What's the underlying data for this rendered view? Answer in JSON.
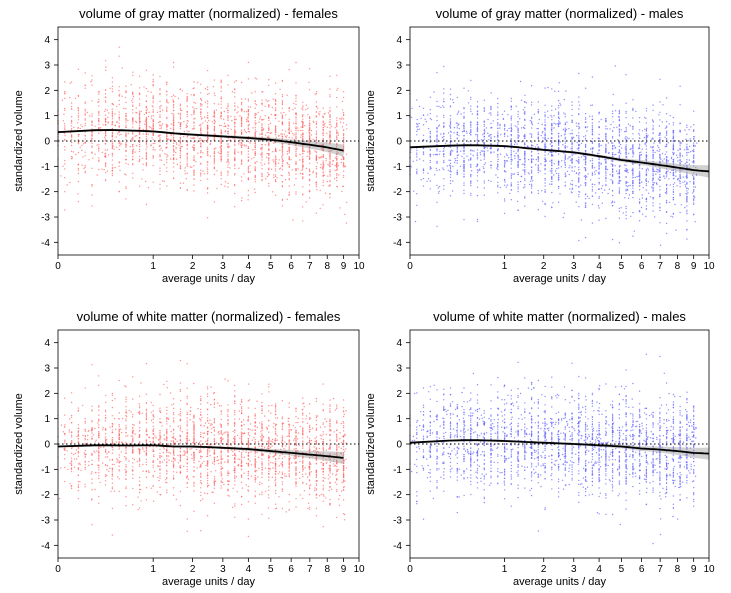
{
  "chart_data": [
    {
      "type": "scatter",
      "title": "volume of gray matter (normalized) - females",
      "xlabel": "average units / day",
      "ylabel": "standardized volume",
      "x_ticks": [
        "0",
        "1",
        "2",
        "3",
        "4",
        "5",
        "6",
        "7",
        "8",
        "9",
        "10"
      ],
      "y_ticks": [
        "4",
        "3",
        "2",
        "1",
        "0",
        "-1",
        "-2",
        "-3",
        "-4"
      ],
      "xlim": [
        0,
        10
      ],
      "ylim": [
        -4.5,
        4.5
      ],
      "x_scale": "sqrt",
      "reference_line_y": 0,
      "point_color": "#ff6b6b",
      "series": [
        {
          "style": "smooth-fit",
          "points": [
            [
              0,
              0.35
            ],
            [
              0.1,
              0.42
            ],
            [
              0.25,
              0.44
            ],
            [
              0.5,
              0.42
            ],
            [
              1,
              0.38
            ],
            [
              1.5,
              0.3
            ],
            [
              2,
              0.25
            ],
            [
              3,
              0.18
            ],
            [
              4,
              0.12
            ],
            [
              5,
              0.05
            ],
            [
              6,
              -0.05
            ],
            [
              7,
              -0.15
            ],
            [
              8,
              -0.25
            ],
            [
              9,
              -0.38
            ]
          ]
        }
      ]
    },
    {
      "type": "scatter",
      "title": "volume of gray matter (normalized) - males",
      "xlabel": "average units / day",
      "ylabel": "standardized volume",
      "x_ticks": [
        "0",
        "1",
        "2",
        "3",
        "4",
        "5",
        "6",
        "7",
        "8",
        "9",
        "10"
      ],
      "y_ticks": [
        "4",
        "3",
        "2",
        "1",
        "0",
        "-1",
        "-2",
        "-3",
        "-4"
      ],
      "xlim": [
        0,
        10
      ],
      "ylim": [
        -4.5,
        4.5
      ],
      "x_scale": "sqrt",
      "reference_line_y": 0,
      "point_color": "#6b6bff",
      "series": [
        {
          "style": "smooth-fit",
          "points": [
            [
              0,
              -0.25
            ],
            [
              0.1,
              -0.2
            ],
            [
              0.25,
              -0.17
            ],
            [
              0.5,
              -0.17
            ],
            [
              1,
              -0.2
            ],
            [
              1.5,
              -0.28
            ],
            [
              2,
              -0.35
            ],
            [
              3,
              -0.45
            ],
            [
              4,
              -0.6
            ],
            [
              5,
              -0.75
            ],
            [
              6,
              -0.85
            ],
            [
              7,
              -0.95
            ],
            [
              8,
              -1.05
            ],
            [
              9,
              -1.15
            ],
            [
              10,
              -1.2
            ]
          ]
        }
      ]
    },
    {
      "type": "scatter",
      "title": "volume of white matter (normalized) - females",
      "xlabel": "average units / day",
      "ylabel": "standardized volume",
      "x_ticks": [
        "0",
        "1",
        "2",
        "3",
        "4",
        "5",
        "6",
        "7",
        "8",
        "9",
        "10"
      ],
      "y_ticks": [
        "4",
        "3",
        "2",
        "1",
        "0",
        "-1",
        "-2",
        "-3",
        "-4"
      ],
      "xlim": [
        0,
        10
      ],
      "ylim": [
        -4.5,
        4.5
      ],
      "x_scale": "sqrt",
      "reference_line_y": 0,
      "point_color": "#ff6b6b",
      "series": [
        {
          "style": "smooth-fit",
          "points": [
            [
              0,
              -0.1
            ],
            [
              0.1,
              -0.05
            ],
            [
              0.25,
              -0.05
            ],
            [
              0.5,
              -0.06
            ],
            [
              1,
              -0.05
            ],
            [
              1.5,
              -0.1
            ],
            [
              2,
              -0.1
            ],
            [
              3,
              -0.15
            ],
            [
              4,
              -0.2
            ],
            [
              5,
              -0.28
            ],
            [
              6,
              -0.35
            ],
            [
              7,
              -0.42
            ],
            [
              8,
              -0.48
            ],
            [
              9,
              -0.55
            ]
          ]
        }
      ]
    },
    {
      "type": "scatter",
      "title": "volume of white matter (normalized) - males",
      "xlabel": "average units / day",
      "ylabel": "standardized volume",
      "x_ticks": [
        "0",
        "1",
        "2",
        "3",
        "4",
        "5",
        "6",
        "7",
        "8",
        "9",
        "10"
      ],
      "y_ticks": [
        "4",
        "3",
        "2",
        "1",
        "0",
        "-1",
        "-2",
        "-3",
        "-4"
      ],
      "xlim": [
        0,
        10
      ],
      "ylim": [
        -4.5,
        4.5
      ],
      "x_scale": "sqrt",
      "reference_line_y": 0,
      "point_color": "#6b6bff",
      "series": [
        {
          "style": "smooth-fit",
          "points": [
            [
              0,
              0.05
            ],
            [
              0.1,
              0.12
            ],
            [
              0.25,
              0.15
            ],
            [
              0.5,
              0.15
            ],
            [
              1,
              0.12
            ],
            [
              1.5,
              0.08
            ],
            [
              2,
              0.05
            ],
            [
              3,
              0.0
            ],
            [
              4,
              -0.05
            ],
            [
              5,
              -0.1
            ],
            [
              6,
              -0.18
            ],
            [
              7,
              -0.22
            ],
            [
              8,
              -0.28
            ],
            [
              9,
              -0.35
            ],
            [
              10,
              -0.38
            ]
          ]
        }
      ]
    }
  ]
}
